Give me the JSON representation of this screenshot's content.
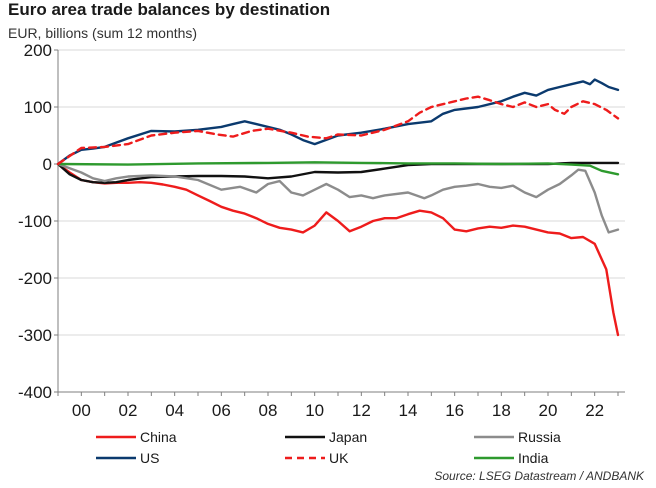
{
  "chart_data": {
    "type": "line",
    "title": "Euro area trade balances by destination",
    "subtitle": "EUR, billions (sum 12 months)",
    "source": "Source: LSEG Datastream / ANDBANK",
    "xlabel": "",
    "ylabel": "",
    "xlim": [
      1999,
      2023.3
    ],
    "ylim": [
      -400,
      200
    ],
    "yticks": [
      200,
      100,
      0,
      -100,
      -200,
      -300,
      -400
    ],
    "xticks": [
      2000,
      2002,
      2004,
      2006,
      2008,
      2010,
      2012,
      2014,
      2016,
      2018,
      2020,
      2022
    ],
    "xtick_labels": [
      "00",
      "02",
      "04",
      "06",
      "08",
      "10",
      "12",
      "14",
      "16",
      "18",
      "20",
      "22"
    ],
    "grid": "horizontal",
    "legend_position": "bottom",
    "series": [
      {
        "name": "China",
        "color": "#ee1c1c",
        "dash": "solid",
        "x": [
          1999.0,
          1999.5,
          2000.0,
          2000.5,
          2001.0,
          2001.5,
          2002.0,
          2002.5,
          2003.0,
          2003.5,
          2004.0,
          2004.5,
          2005.0,
          2005.5,
          2006.0,
          2006.5,
          2007.0,
          2007.5,
          2008.0,
          2008.5,
          2009.0,
          2009.5,
          2010.0,
          2010.5,
          2011.0,
          2011.5,
          2012.0,
          2012.5,
          2013.0,
          2013.5,
          2014.0,
          2014.5,
          2015.0,
          2015.5,
          2016.0,
          2016.5,
          2017.0,
          2017.5,
          2018.0,
          2018.5,
          2019.0,
          2019.5,
          2020.0,
          2020.5,
          2021.0,
          2021.5,
          2022.0,
          2022.5,
          2022.8,
          2023.0
        ],
        "values": [
          0,
          -15,
          -28,
          -32,
          -34,
          -33,
          -33,
          -32,
          -33,
          -36,
          -40,
          -45,
          -55,
          -65,
          -75,
          -82,
          -87,
          -95,
          -105,
          -112,
          -115,
          -120,
          -108,
          -85,
          -100,
          -118,
          -110,
          -100,
          -95,
          -95,
          -88,
          -82,
          -85,
          -95,
          -115,
          -118,
          -113,
          -110,
          -112,
          -108,
          -110,
          -115,
          -120,
          -122,
          -130,
          -128,
          -140,
          -185,
          -260,
          -300
        ]
      },
      {
        "name": "Japan",
        "color": "#111111",
        "dash": "solid",
        "x": [
          1999.0,
          1999.5,
          2000.0,
          2000.5,
          2001.0,
          2001.5,
          2002.0,
          2003.0,
          2004.0,
          2005.0,
          2006.0,
          2007.0,
          2008.0,
          2009.0,
          2010.0,
          2011.0,
          2012.0,
          2013.0,
          2014.0,
          2015.0,
          2016.0,
          2017.0,
          2018.0,
          2019.0,
          2020.0,
          2021.0,
          2022.0,
          2023.0
        ],
        "values": [
          0,
          -18,
          -28,
          -32,
          -33,
          -32,
          -28,
          -23,
          -22,
          -21,
          -21,
          -22,
          -25,
          -22,
          -14,
          -15,
          -14,
          -8,
          -2,
          0,
          0,
          0,
          0,
          0,
          0,
          2,
          2,
          2
        ]
      },
      {
        "name": "Russia",
        "color": "#8c8c8c",
        "dash": "solid",
        "x": [
          1999.0,
          2000.0,
          2000.5,
          2001.0,
          2001.5,
          2002.0,
          2003.0,
          2004.0,
          2005.0,
          2006.0,
          2006.8,
          2007.5,
          2008.0,
          2008.5,
          2009.0,
          2009.5,
          2010.0,
          2010.5,
          2011.0,
          2011.5,
          2012.0,
          2012.5,
          2013.0,
          2014.0,
          2014.7,
          2015.0,
          2015.5,
          2016.0,
          2016.5,
          2017.0,
          2017.5,
          2018.0,
          2018.5,
          2019.0,
          2019.5,
          2020.0,
          2020.5,
          2021.0,
          2021.3,
          2021.6,
          2022.0,
          2022.3,
          2022.6,
          2023.0
        ],
        "values": [
          0,
          -15,
          -25,
          -30,
          -25,
          -22,
          -20,
          -22,
          -28,
          -45,
          -40,
          -50,
          -35,
          -30,
          -50,
          -55,
          -45,
          -35,
          -45,
          -58,
          -55,
          -60,
          -55,
          -50,
          -60,
          -55,
          -45,
          -40,
          -38,
          -35,
          -40,
          -42,
          -38,
          -50,
          -58,
          -45,
          -35,
          -20,
          -10,
          -12,
          -50,
          -90,
          -120,
          -115
        ]
      },
      {
        "name": "India",
        "color": "#2e9a2e",
        "dash": "solid",
        "x": [
          1999.0,
          2002.0,
          2005.0,
          2008.0,
          2010.0,
          2012.0,
          2014.0,
          2016.0,
          2018.0,
          2020.0,
          2021.0,
          2021.8,
          2022.3,
          2023.0
        ],
        "values": [
          0,
          -1,
          1,
          2,
          3,
          2,
          1,
          1,
          0,
          1,
          -1,
          -3,
          -12,
          -18
        ]
      },
      {
        "name": "US",
        "color": "#0b3a6e",
        "dash": "solid",
        "x": [
          1999.0,
          1999.5,
          2000.0,
          2000.5,
          2001.0,
          2002.0,
          2003.0,
          2004.0,
          2005.0,
          2006.0,
          2006.5,
          2007.0,
          2007.5,
          2008.0,
          2008.5,
          2009.0,
          2009.5,
          2010.0,
          2011.0,
          2012.0,
          2013.0,
          2014.0,
          2015.0,
          2015.5,
          2016.0,
          2017.0,
          2018.0,
          2018.5,
          2019.0,
          2019.5,
          2020.0,
          2020.5,
          2021.0,
          2021.5,
          2021.8,
          2022.0,
          2022.3,
          2022.6,
          2023.0
        ],
        "values": [
          0,
          15,
          25,
          27,
          30,
          45,
          58,
          57,
          60,
          65,
          70,
          75,
          70,
          65,
          60,
          52,
          42,
          35,
          50,
          55,
          62,
          70,
          75,
          88,
          95,
          100,
          110,
          118,
          125,
          120,
          130,
          135,
          140,
          145,
          140,
          148,
          142,
          135,
          130
        ]
      },
      {
        "name": "UK",
        "color": "#ee1c1c",
        "dash": "dashed",
        "x": [
          1999.0,
          2000.0,
          2001.0,
          2002.0,
          2003.0,
          2004.0,
          2005.0,
          2005.8,
          2006.5,
          2007.3,
          2008.0,
          2009.0,
          2009.7,
          2010.5,
          2011.0,
          2012.0,
          2013.0,
          2014.0,
          2014.5,
          2015.0,
          2016.0,
          2016.5,
          2017.0,
          2017.5,
          2018.0,
          2018.5,
          2019.0,
          2019.5,
          2020.0,
          2020.3,
          2020.7,
          2021.0,
          2021.5,
          2022.0,
          2022.5,
          2023.0
        ],
        "values": [
          0,
          28,
          30,
          35,
          50,
          55,
          58,
          52,
          48,
          58,
          62,
          55,
          48,
          45,
          52,
          50,
          60,
          75,
          90,
          100,
          110,
          115,
          118,
          112,
          105,
          100,
          108,
          100,
          105,
          95,
          88,
          100,
          110,
          105,
          95,
          80
        ]
      }
    ]
  }
}
